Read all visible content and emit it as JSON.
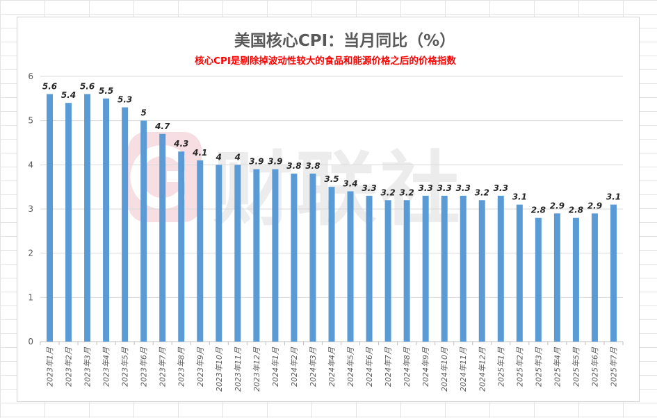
{
  "chart_data": {
    "type": "bar",
    "title": "美国核心CPI：当月同比（%）",
    "subtitle": "核心CPI是剔除掉波动性较大的食品和能源价格之后的价格指数",
    "watermark": "财联社",
    "xlabel": "",
    "ylabel": "",
    "ylim": [
      0,
      6
    ],
    "yticks": [
      0,
      1,
      2,
      3,
      4,
      5,
      6
    ],
    "grid": true,
    "categories": [
      "2023年1月",
      "2023年2月",
      "2023年3月",
      "2023年4月",
      "2023年5月",
      "2023年6月",
      "2023年7月",
      "2023年8月",
      "2023年9月",
      "2023年10月",
      "2023年11月",
      "2023年12月",
      "2024年1月",
      "2024年2月",
      "2024年3月",
      "2024年4月",
      "2024年5月",
      "2024年6月",
      "2024年7月",
      "2024年8月",
      "2024年9月",
      "2024年10月",
      "2024年11月",
      "2024年12月",
      "2025年1月",
      "2025年2月",
      "2025年3月",
      "2025年4月",
      "2025年5月",
      "2025年6月",
      "2025年7月"
    ],
    "values": [
      5.6,
      5.4,
      5.6,
      5.5,
      5.3,
      5,
      4.7,
      4.3,
      4.1,
      4,
      4,
      3.9,
      3.9,
      3.8,
      3.8,
      3.5,
      3.4,
      3.3,
      3.2,
      3.2,
      3.3,
      3.3,
      3.3,
      3.2,
      3.3,
      3.1,
      2.8,
      2.9,
      2.8,
      2.9,
      3.1
    ],
    "colors": {
      "bar": "#5b9bd5",
      "title": "#595959",
      "subtitle": "#ff0000",
      "axis_text": "#595959",
      "gridline": "#d9d9d9",
      "watermark": "#f7dde2"
    }
  }
}
